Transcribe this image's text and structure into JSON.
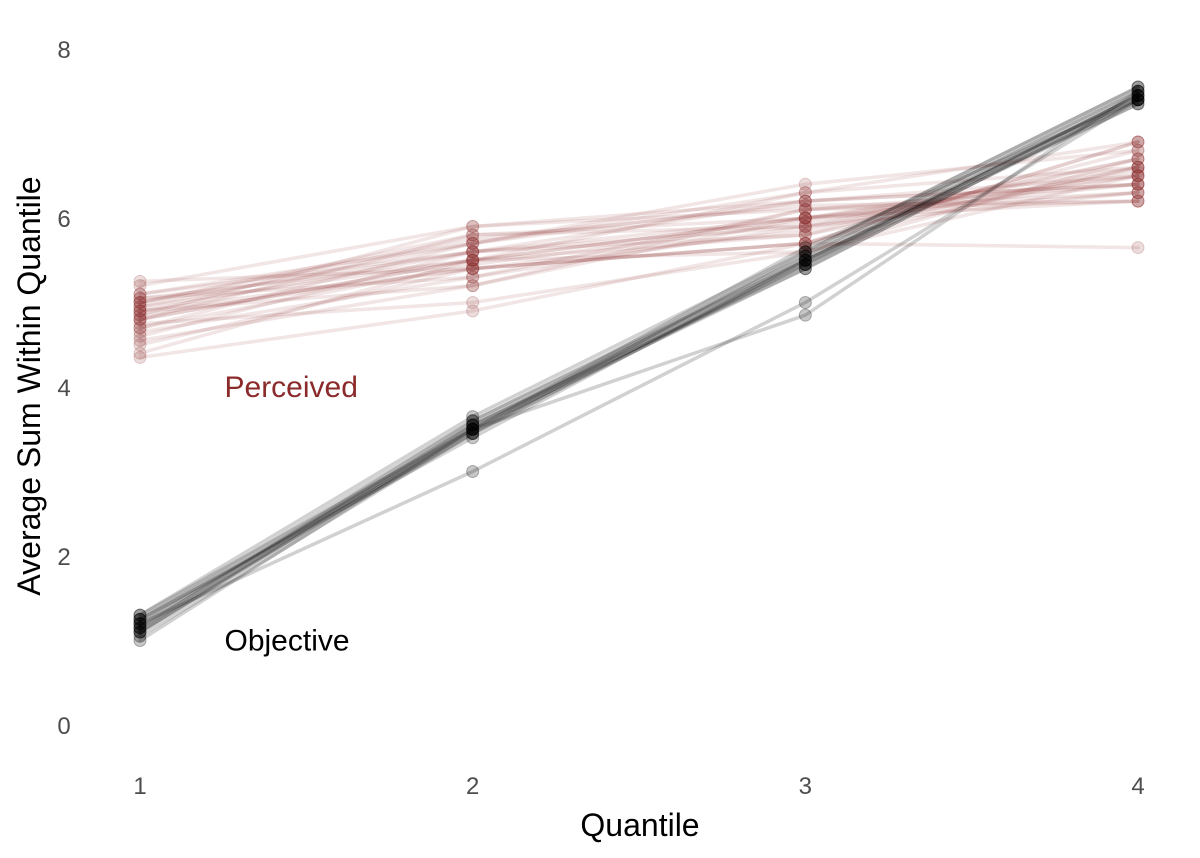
{
  "chart_data": {
    "type": "line",
    "title": "",
    "xlabel": "Quantile",
    "ylabel": "Average Sum Within Quantile",
    "x": [
      1,
      2,
      3,
      4
    ],
    "x_ticks": [
      "1",
      "2",
      "3",
      "4"
    ],
    "y_ticks": [
      "0",
      "2",
      "4",
      "6",
      "8"
    ],
    "xlim": [
      1,
      4
    ],
    "ylim": [
      0,
      8
    ],
    "grid": false,
    "legend": "none",
    "colors": {
      "Perceived": "#8b2a2a",
      "Objective": "#000000"
    },
    "annotations": [
      {
        "text": "Perceived",
        "x": 1.75,
        "y": 4.0,
        "color": "#8b2a2a"
      },
      {
        "text": "Objective",
        "x": 1.75,
        "y": 1.0,
        "color": "#000000"
      }
    ],
    "series": [
      {
        "group": "Perceived",
        "values": [
          4.35,
          4.9,
          5.7,
          6.9
        ]
      },
      {
        "group": "Perceived",
        "values": [
          4.4,
          5.5,
          6.0,
          6.4
        ]
      },
      {
        "group": "Perceived",
        "values": [
          4.5,
          5.4,
          5.7,
          6.6
        ]
      },
      {
        "group": "Perceived",
        "values": [
          4.55,
          5.2,
          6.1,
          6.2
        ]
      },
      {
        "group": "Perceived",
        "values": [
          4.6,
          5.6,
          5.8,
          6.8
        ]
      },
      {
        "group": "Perceived",
        "values": [
          4.65,
          5.3,
          5.9,
          6.3
        ]
      },
      {
        "group": "Perceived",
        "values": [
          4.7,
          5.7,
          6.2,
          6.5
        ]
      },
      {
        "group": "Perceived",
        "values": [
          4.75,
          5.0,
          5.6,
          6.7
        ]
      },
      {
        "group": "Perceived",
        "values": [
          4.8,
          5.8,
          6.0,
          6.3
        ]
      },
      {
        "group": "Perceived",
        "values": [
          4.8,
          5.5,
          6.3,
          6.6
        ]
      },
      {
        "group": "Perceived",
        "values": [
          4.85,
          5.4,
          5.7,
          6.9
        ]
      },
      {
        "group": "Perceived",
        "values": [
          4.85,
          5.9,
          6.1,
          6.4
        ]
      },
      {
        "group": "Perceived",
        "values": [
          4.9,
          5.6,
          5.9,
          6.5
        ]
      },
      {
        "group": "Perceived",
        "values": [
          4.9,
          5.2,
          6.0,
          6.2
        ]
      },
      {
        "group": "Perceived",
        "values": [
          4.95,
          5.7,
          6.4,
          6.8
        ]
      },
      {
        "group": "Perceived",
        "values": [
          4.95,
          5.5,
          5.8,
          6.6
        ]
      },
      {
        "group": "Perceived",
        "values": [
          5.0,
          5.6,
          6.2,
          6.4
        ]
      },
      {
        "group": "Perceived",
        "values": [
          5.0,
          5.8,
          5.9,
          6.7
        ]
      },
      {
        "group": "Perceived",
        "values": [
          5.05,
          5.3,
          6.1,
          6.3
        ]
      },
      {
        "group": "Perceived",
        "values": [
          5.05,
          5.5,
          5.6,
          6.5
        ]
      },
      {
        "group": "Perceived",
        "values": [
          5.1,
          5.7,
          6.3,
          6.9
        ]
      },
      {
        "group": "Perceived",
        "values": [
          5.1,
          5.6,
          6.0,
          6.6
        ]
      },
      {
        "group": "Perceived",
        "values": [
          5.2,
          5.9,
          6.2,
          6.4
        ]
      },
      {
        "group": "Perceived",
        "values": [
          5.25,
          5.4,
          5.7,
          5.65
        ]
      },
      {
        "group": "Perceived",
        "values": [
          4.8,
          5.5,
          6.0,
          6.5
        ]
      },
      {
        "group": "Perceived",
        "values": [
          4.9,
          5.4,
          5.85,
          6.7
        ]
      },
      {
        "group": "Perceived",
        "values": [
          5.0,
          5.75,
          6.15,
          6.2
        ]
      },
      {
        "group": "Perceived",
        "values": [
          4.7,
          5.45,
          5.95,
          6.55
        ]
      },
      {
        "group": "Objective",
        "values": [
          1.0,
          3.5,
          5.4,
          7.4
        ]
      },
      {
        "group": "Objective",
        "values": [
          1.05,
          3.45,
          5.45,
          7.35
        ]
      },
      {
        "group": "Objective",
        "values": [
          1.1,
          3.55,
          5.5,
          7.45
        ]
      },
      {
        "group": "Objective",
        "values": [
          1.1,
          3.5,
          5.55,
          7.5
        ]
      },
      {
        "group": "Objective",
        "values": [
          1.15,
          3.6,
          5.5,
          7.4
        ]
      },
      {
        "group": "Objective",
        "values": [
          1.15,
          3.45,
          5.6,
          7.55
        ]
      },
      {
        "group": "Objective",
        "values": [
          1.2,
          3.55,
          5.45,
          7.45
        ]
      },
      {
        "group": "Objective",
        "values": [
          1.2,
          3.5,
          5.65,
          7.4
        ]
      },
      {
        "group": "Objective",
        "values": [
          1.25,
          3.6,
          5.55,
          7.5
        ]
      },
      {
        "group": "Objective",
        "values": [
          1.25,
          3.4,
          5.5,
          7.35
        ]
      },
      {
        "group": "Objective",
        "values": [
          1.3,
          3.65,
          5.6,
          7.55
        ]
      },
      {
        "group": "Objective",
        "values": [
          1.3,
          3.5,
          5.45,
          7.45
        ]
      },
      {
        "group": "Objective",
        "values": [
          1.2,
          3.0,
          5.0,
          7.4
        ]
      },
      {
        "group": "Objective",
        "values": [
          1.1,
          3.5,
          4.85,
          7.5
        ]
      },
      {
        "group": "Objective",
        "values": [
          1.15,
          3.55,
          5.4,
          7.4
        ]
      },
      {
        "group": "Objective",
        "values": [
          1.25,
          3.45,
          5.5,
          7.45
        ]
      }
    ]
  }
}
